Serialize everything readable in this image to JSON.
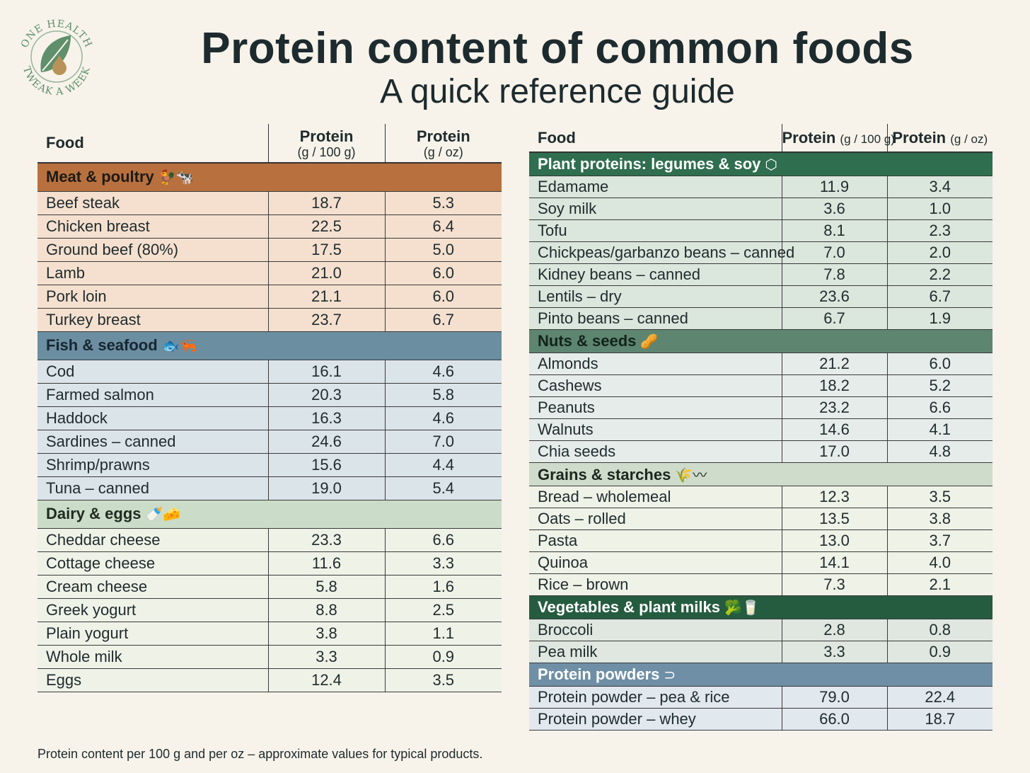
{
  "logo": {
    "top_text": "ONE HEALTH",
    "bottom_text": "TWEAK A WEEK"
  },
  "title": "Protein content of common foods",
  "subtitle": "A quick reference guide",
  "left_table": {
    "headers": {
      "food": "Food",
      "per100_label": "Protein",
      "per100_unit": "(g / 100 g)",
      "peroz_label": "Protein",
      "peroz_unit": "(g / oz)"
    },
    "categories": [
      {
        "name": "Meat & poultry",
        "icons": [
          "chicken-icon",
          "cow-icon"
        ],
        "icon_glyphs": "🐓🐄",
        "rows": [
          {
            "food": "Beef steak",
            "per100": "18.7",
            "peroz": "5.3"
          },
          {
            "food": "Chicken breast",
            "per100": "22.5",
            "peroz": "6.4"
          },
          {
            "food": "Ground beef (80%)",
            "per100": "17.5",
            "peroz": "5.0"
          },
          {
            "food": "Lamb",
            "per100": "21.0",
            "peroz": "6.0"
          },
          {
            "food": "Pork loin",
            "per100": "21.1",
            "peroz": "6.0"
          },
          {
            "food": "Turkey breast",
            "per100": "23.7",
            "peroz": "6.7"
          }
        ]
      },
      {
        "name": "Fish & seafood",
        "icons": [
          "fish-icon",
          "shrimp-icon"
        ],
        "icon_glyphs": "🐟🦐",
        "rows": [
          {
            "food": "Cod",
            "per100": "16.1",
            "peroz": "4.6"
          },
          {
            "food": "Farmed salmon",
            "per100": "20.3",
            "peroz": "5.8"
          },
          {
            "food": "Haddock",
            "per100": "16.3",
            "peroz": "4.6"
          },
          {
            "food": "Sardines – canned",
            "per100": "24.6",
            "peroz": "7.0"
          },
          {
            "food": "Shrimp/prawns",
            "per100": "15.6",
            "peroz": "4.4"
          },
          {
            "food": "Tuna – canned",
            "per100": "19.0",
            "peroz": "5.4"
          }
        ]
      },
      {
        "name": "Dairy & eggs",
        "icons": [
          "milk-bottle-icon",
          "cheese-icon"
        ],
        "icon_glyphs": "🍼🧀",
        "rows": [
          {
            "food": "Cheddar cheese",
            "per100": "23.3",
            "peroz": "6.6"
          },
          {
            "food": "Cottage cheese",
            "per100": "11.6",
            "peroz": "3.3"
          },
          {
            "food": "Cream cheese",
            "per100": "5.8",
            "peroz": "1.6"
          },
          {
            "food": "Greek yogurt",
            "per100": "8.8",
            "peroz": "2.5"
          },
          {
            "food": "Plain yogurt",
            "per100": "3.8",
            "peroz": "1.1"
          },
          {
            "food": "Whole milk",
            "per100": "3.3",
            "peroz": "0.9"
          },
          {
            "food": "Eggs",
            "per100": "12.4",
            "peroz": "3.5"
          }
        ]
      }
    ]
  },
  "right_table": {
    "headers": {
      "food": "Food",
      "per100_label": "Protein",
      "per100_unit": "(g / 100 g)",
      "peroz_label": "Protein",
      "peroz_unit": "(g / oz)"
    },
    "categories": [
      {
        "name": "Plant proteins: legumes & soy",
        "icons": [
          "tofu-icon"
        ],
        "icon_glyphs": "⬡",
        "rows": [
          {
            "food": "Edamame",
            "per100": "11.9",
            "peroz": "3.4"
          },
          {
            "food": "Soy milk",
            "per100": "3.6",
            "peroz": "1.0"
          },
          {
            "food": "Tofu",
            "per100": "8.1",
            "peroz": "2.3"
          },
          {
            "food": "Chickpeas/garbanzo beans – canned",
            "per100": "7.0",
            "peroz": "2.0"
          },
          {
            "food": "Kidney beans – canned",
            "per100": "7.8",
            "peroz": "2.2"
          },
          {
            "food": "Lentils – dry",
            "per100": "23.6",
            "peroz": "6.7"
          },
          {
            "food": "Pinto beans – canned",
            "per100": "6.7",
            "peroz": "1.9"
          }
        ]
      },
      {
        "name": "Nuts & seeds",
        "icons": [
          "nuts-icon"
        ],
        "icon_glyphs": "🥜",
        "rows": [
          {
            "food": "Almonds",
            "per100": "21.2",
            "peroz": "6.0"
          },
          {
            "food": "Cashews",
            "per100": "18.2",
            "peroz": "5.2"
          },
          {
            "food": "Peanuts",
            "per100": "23.2",
            "peroz": "6.6"
          },
          {
            "food": "Walnuts",
            "per100": "14.6",
            "peroz": "4.1"
          },
          {
            "food": "Chia seeds",
            "per100": "17.0",
            "peroz": "4.8"
          }
        ]
      },
      {
        "name": "Grains & starches",
        "icons": [
          "wheat-icon",
          "pasta-icon"
        ],
        "icon_glyphs": "🌾〰",
        "rows": [
          {
            "food": "Bread – wholemeal",
            "per100": "12.3",
            "peroz": "3.5"
          },
          {
            "food": "Oats – rolled",
            "per100": "13.5",
            "peroz": "3.8"
          },
          {
            "food": "Pasta",
            "per100": "13.0",
            "peroz": "3.7"
          },
          {
            "food": "Quinoa",
            "per100": "14.1",
            "peroz": "4.0"
          },
          {
            "food": "Rice – brown",
            "per100": "7.3",
            "peroz": "2.1"
          }
        ]
      },
      {
        "name": "Vegetables & plant milks",
        "icons": [
          "broccoli-icon",
          "milk-carton-icon"
        ],
        "icon_glyphs": "🥦🥛",
        "rows": [
          {
            "food": "Broccoli",
            "per100": "2.8",
            "peroz": "0.8"
          },
          {
            "food": "Pea milk",
            "per100": "3.3",
            "peroz": "0.9"
          }
        ]
      },
      {
        "name": "Protein powders",
        "icons": [
          "scoop-icon"
        ],
        "icon_glyphs": "⊃",
        "rows": [
          {
            "food": "Protein powder – pea & rice",
            "per100": "79.0",
            "peroz": "22.4"
          },
          {
            "food": "Protein powder – whey",
            "per100": "66.0",
            "peroz": "18.7"
          }
        ]
      }
    ]
  },
  "footnote": "Protein content per 100 g and per oz – approximate values for typical products."
}
